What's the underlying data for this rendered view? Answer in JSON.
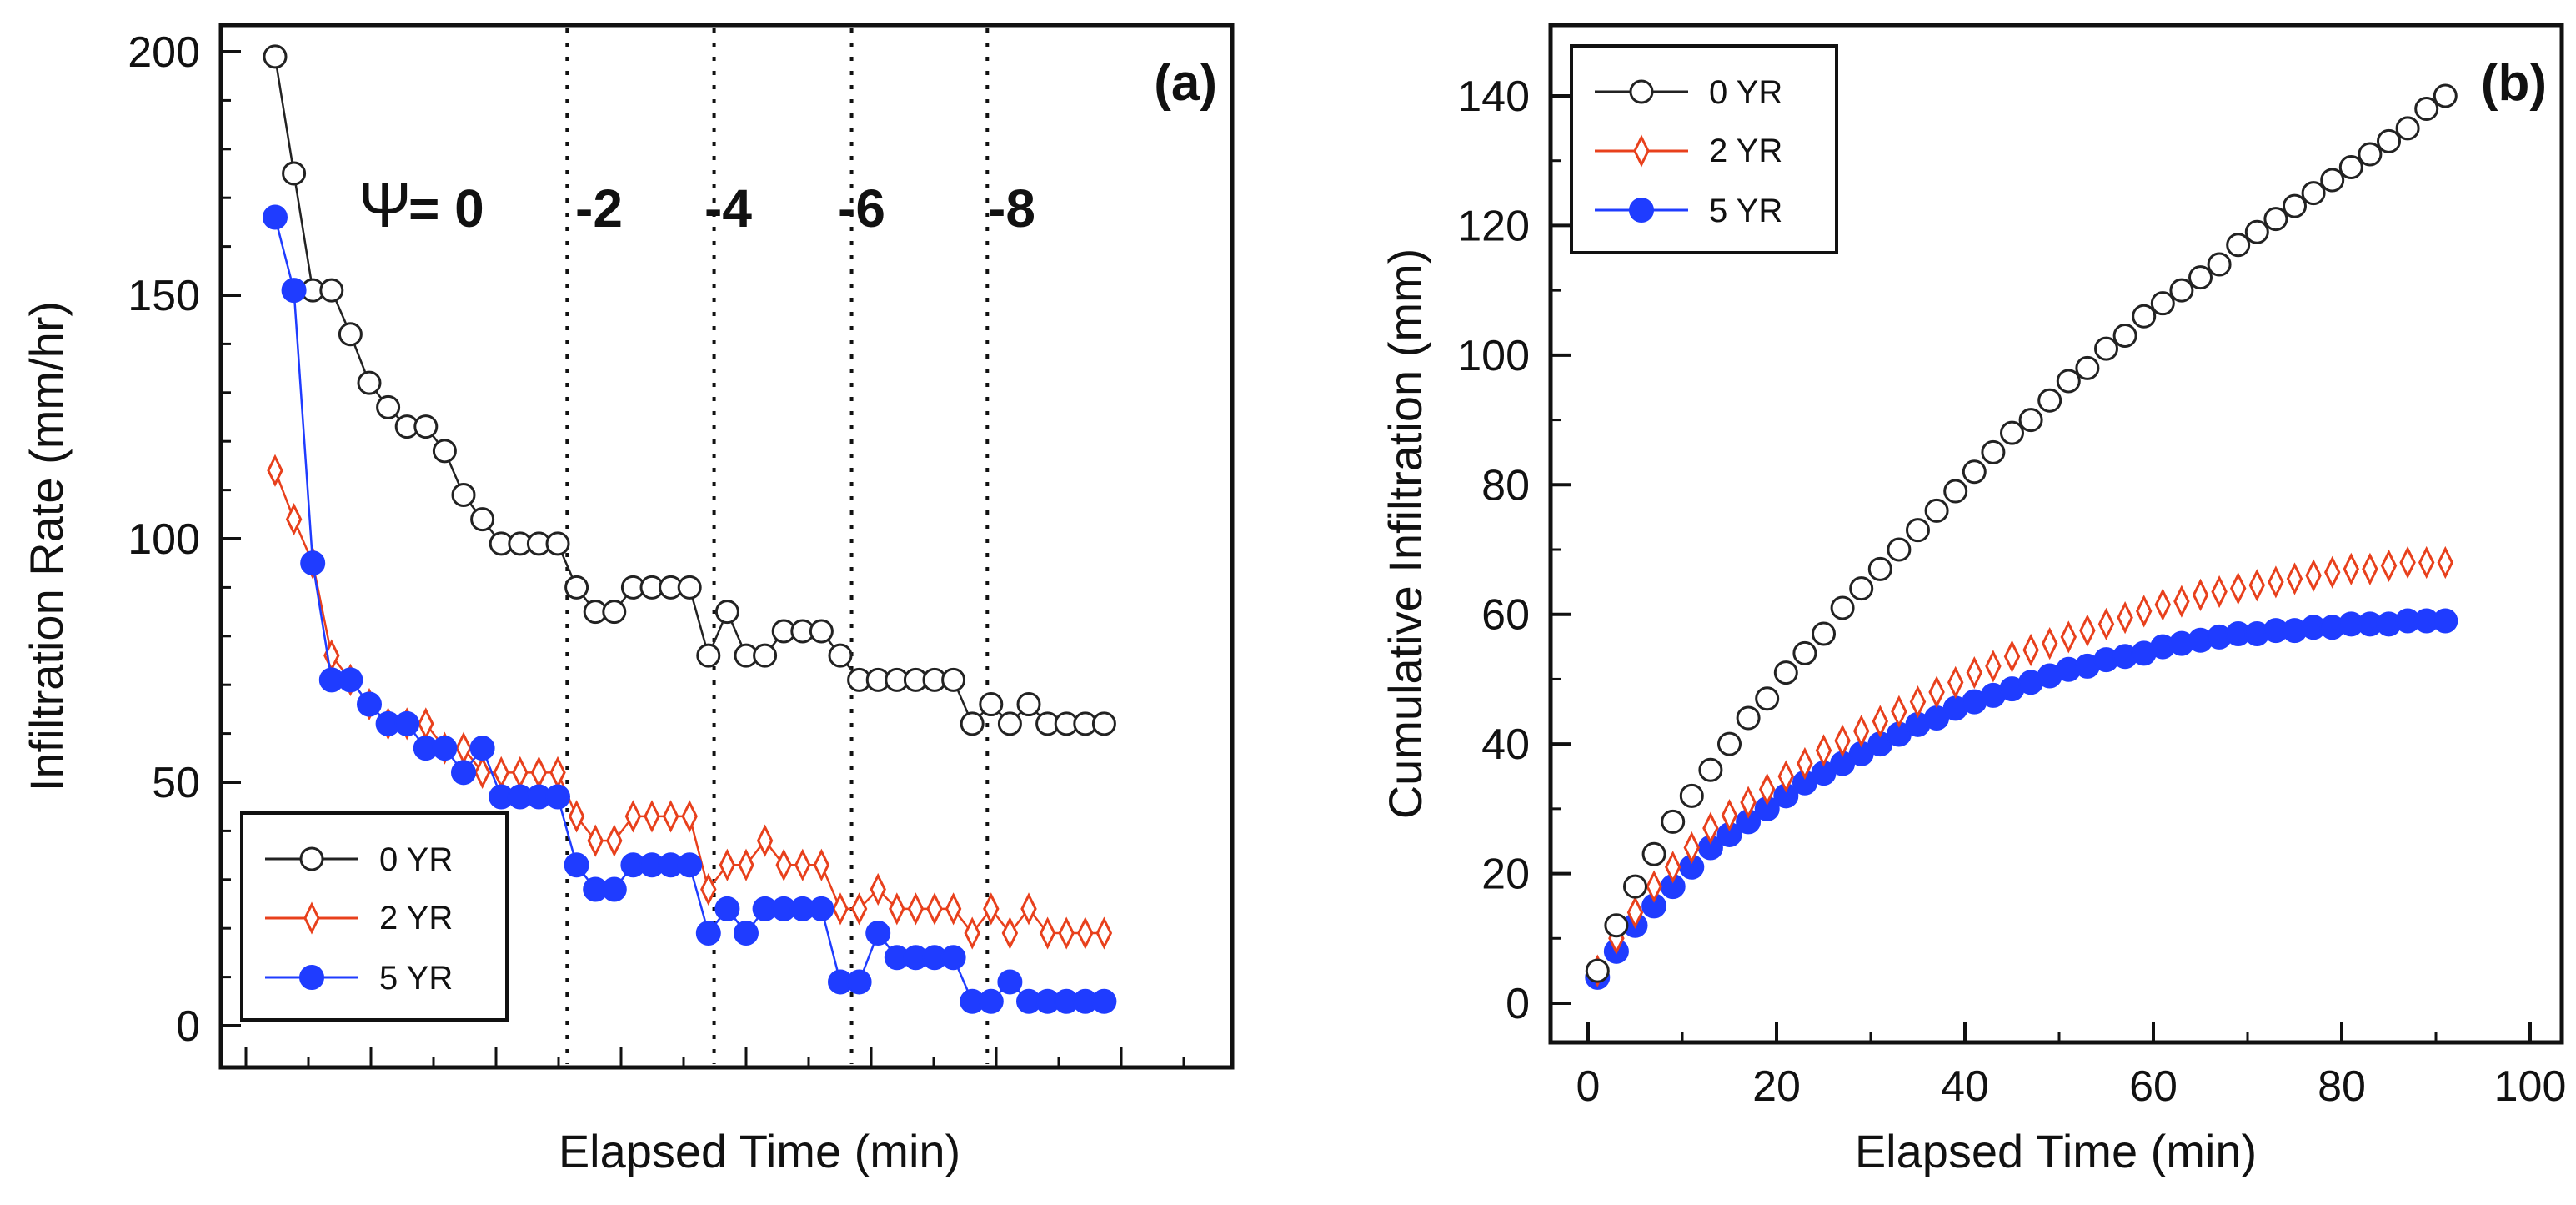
{
  "chart_data": [
    {
      "panel": "(a)",
      "type": "line",
      "xlabel": "Elapsed Time (min)",
      "ylabel": "Infiltration Rate (mm/hr)",
      "ylim": [
        0,
        200
      ],
      "yticks": [
        "0",
        "50",
        "100",
        "150",
        "200"
      ],
      "x_tick_labels_shown": false,
      "psi_symbol": "Ψ",
      "psi_labels": [
        "= 0",
        "-2",
        "-4",
        "-6",
        "-8"
      ],
      "legend": {
        "position": "bottom-left",
        "entries": [
          "0 YR",
          "2 YR",
          "5 YR"
        ]
      },
      "series": [
        {
          "name": "0 YR",
          "color": "#222222",
          "marker": "open-circle",
          "values": [
            199,
            175,
            151,
            151,
            142,
            132,
            127,
            123,
            123,
            118,
            109,
            104,
            99,
            99,
            99,
            99,
            90,
            85,
            85,
            90,
            90,
            90,
            90,
            76,
            85,
            76,
            76,
            81,
            81,
            81,
            76,
            71,
            71,
            71,
            71,
            71,
            71,
            62,
            66,
            62,
            66,
            62,
            62,
            62,
            62
          ]
        },
        {
          "name": "2 YR",
          "color": "#e8401c",
          "marker": "open-diamond",
          "values": [
            114,
            104,
            95,
            76,
            71,
            66,
            62,
            62,
            62,
            57,
            57,
            52,
            52,
            52,
            52,
            52,
            43,
            38,
            38,
            43,
            43,
            43,
            43,
            28,
            33,
            33,
            38,
            33,
            33,
            33,
            24,
            24,
            28,
            24,
            24,
            24,
            24,
            19,
            24,
            19,
            24,
            19,
            19,
            19,
            19
          ]
        },
        {
          "name": "5 YR",
          "color": "#1f3cff",
          "marker": "filled-circle",
          "values": [
            166,
            151,
            95,
            71,
            71,
            66,
            62,
            62,
            57,
            57,
            52,
            57,
            47,
            47,
            47,
            47,
            33,
            28,
            28,
            33,
            33,
            33,
            33,
            19,
            24,
            19,
            24,
            24,
            24,
            24,
            9,
            9,
            19,
            14,
            14,
            14,
            14,
            5,
            5,
            9,
            5,
            5,
            5,
            5,
            5
          ]
        }
      ]
    },
    {
      "panel": "(b)",
      "type": "scatter",
      "xlabel": "Elapsed Time (min)",
      "ylabel": "Cumulative Infiltration (mm)",
      "xlim": [
        0,
        100
      ],
      "ylim": [
        0,
        150
      ],
      "xticks": [
        "0",
        "20",
        "40",
        "60",
        "80",
        "100"
      ],
      "yticks": [
        "0",
        "20",
        "40",
        "60",
        "80",
        "100",
        "120",
        "140"
      ],
      "legend": {
        "position": "top-left",
        "entries": [
          "0 YR",
          "2 YR",
          "5 YR"
        ]
      },
      "x": [
        1,
        3,
        5,
        7,
        9,
        11,
        13,
        15,
        17,
        19,
        21,
        23,
        25,
        27,
        29,
        31,
        33,
        35,
        37,
        39,
        41,
        43,
        45,
        47,
        49,
        51,
        53,
        55,
        57,
        59,
        61,
        63,
        65,
        67,
        69,
        71,
        73,
        75,
        77,
        79,
        81,
        83,
        85,
        87,
        89,
        91
      ],
      "series": [
        {
          "name": "0 YR",
          "color": "#222222",
          "marker": "open-circle",
          "values": [
            5,
            12,
            18,
            23,
            28,
            32,
            36,
            40,
            44,
            47,
            51,
            54,
            57,
            61,
            64,
            67,
            70,
            73,
            76,
            79,
            82,
            85,
            88,
            90,
            93,
            96,
            98,
            101,
            103,
            106,
            108,
            110,
            112,
            114,
            117,
            119,
            121,
            123,
            125,
            127,
            129,
            131,
            133,
            135,
            138,
            140
          ]
        },
        {
          "name": "2 YR",
          "color": "#e8401c",
          "marker": "open-diamond",
          "values": [
            5,
            10,
            14,
            18,
            21,
            24,
            27,
            29,
            31,
            33,
            35,
            37,
            39,
            40.5,
            42,
            43.5,
            45,
            46.5,
            48,
            49.5,
            51,
            52,
            53.5,
            54.5,
            55.5,
            56.5,
            57.5,
            58.5,
            59.5,
            60.5,
            61.5,
            62,
            63,
            63.5,
            64,
            64.5,
            65,
            65.5,
            66,
            66.5,
            67,
            67,
            67.5,
            68,
            68,
            68
          ]
        },
        {
          "name": "5 YR",
          "color": "#1f3cff",
          "marker": "filled-circle",
          "values": [
            4,
            8,
            12,
            15,
            18,
            21,
            24,
            26,
            28,
            30,
            32,
            34,
            35.5,
            37,
            38.5,
            40,
            41.5,
            43,
            44,
            45.5,
            46.5,
            47.5,
            48.5,
            49.5,
            50.5,
            51.5,
            52,
            53,
            53.5,
            54,
            55,
            55.5,
            56,
            56.5,
            57,
            57,
            57.5,
            57.5,
            58,
            58,
            58.5,
            58.5,
            58.5,
            59,
            59,
            59
          ]
        }
      ]
    }
  ]
}
